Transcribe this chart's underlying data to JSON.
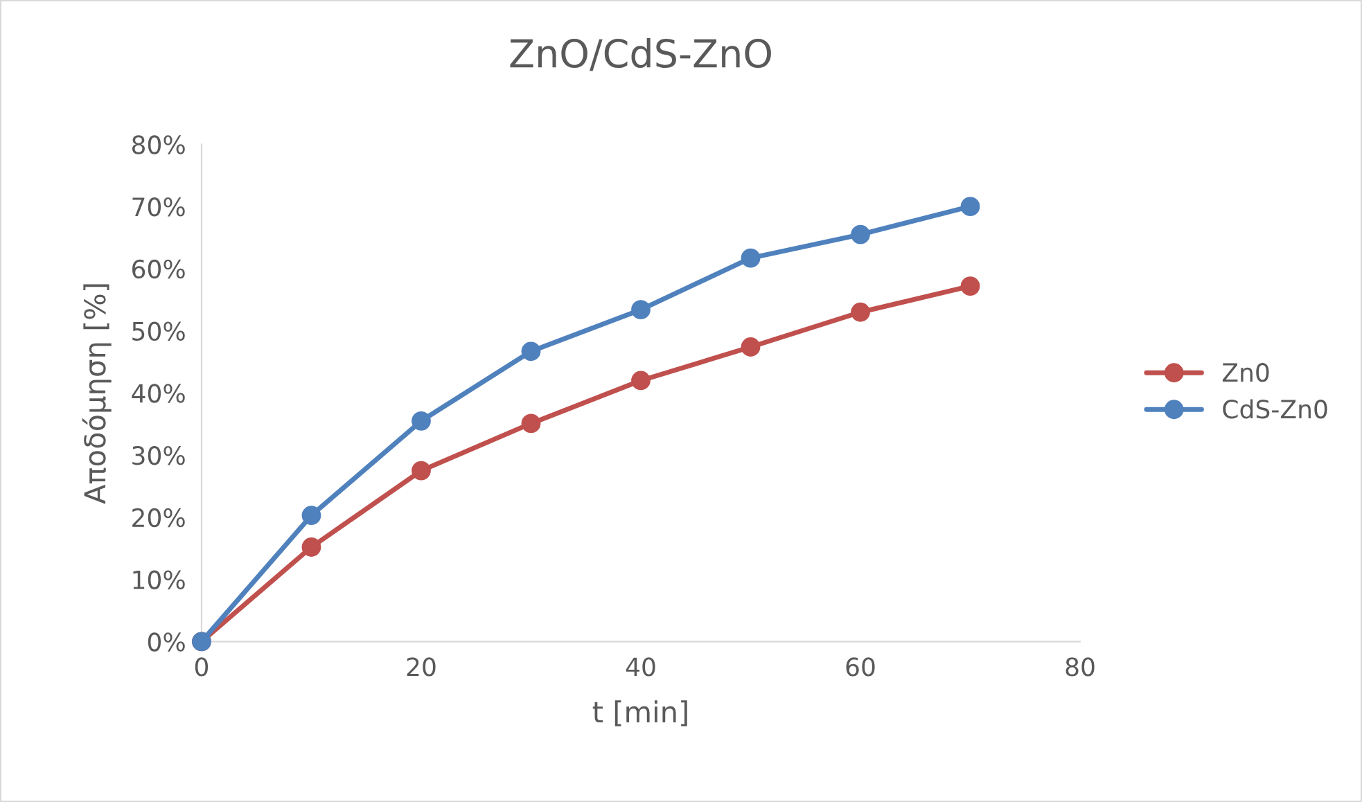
{
  "chart_data": {
    "type": "line",
    "title": "ZnO/CdS-ZnO",
    "xlabel": "t [min]",
    "ylabel": "Αποδόμηση [%]",
    "x": [
      0,
      10,
      20,
      30,
      40,
      50,
      60,
      70
    ],
    "series": [
      {
        "name": "Zn0",
        "color": "#c0504d",
        "values": [
          0,
          15.2,
          27.5,
          35.1,
          42.0,
          47.4,
          53.0,
          57.2
        ]
      },
      {
        "name": "CdS-Zn0",
        "color": "#4f81bd",
        "values": [
          0,
          20.3,
          35.5,
          46.7,
          53.4,
          61.7,
          65.5,
          70.0
        ]
      }
    ],
    "xlim": [
      0,
      80
    ],
    "xticks": [
      0,
      20,
      40,
      60,
      80
    ],
    "ylim": [
      0,
      80
    ],
    "yticks": [
      {
        "value": 0,
        "label": "0%"
      },
      {
        "value": 10,
        "label": "10%"
      },
      {
        "value": 20,
        "label": "20%"
      },
      {
        "value": 30,
        "label": "30%"
      },
      {
        "value": 40,
        "label": "40%"
      },
      {
        "value": 50,
        "label": "50%"
      },
      {
        "value": 60,
        "label": "60%"
      },
      {
        "value": 70,
        "label": "70%"
      },
      {
        "value": 80,
        "label": "80%"
      }
    ],
    "marker": "circle",
    "line_style": "solid",
    "grid": false,
    "legend": "right"
  }
}
